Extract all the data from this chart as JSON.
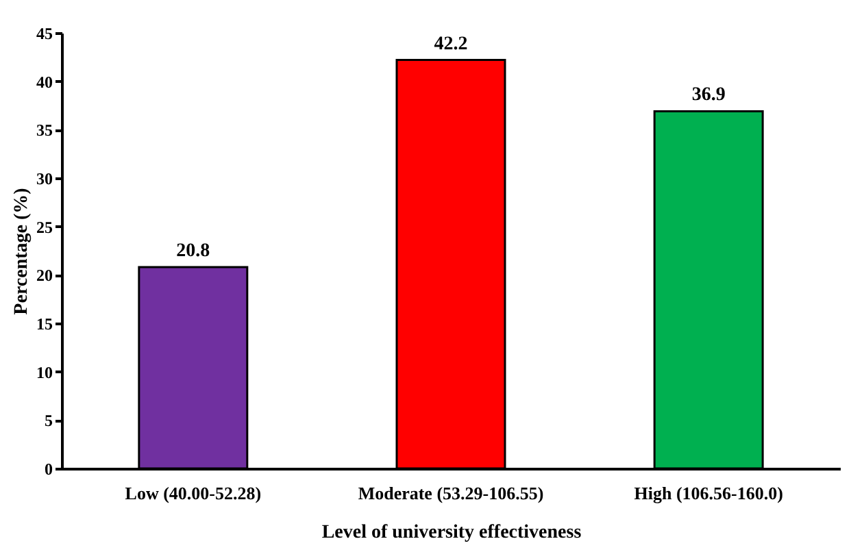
{
  "chart_data": {
    "type": "bar",
    "xlabel": "Level of university effectiveness",
    "ylabel": "Percentage (%)",
    "categories": [
      "Low (40.00-52.28)",
      "Moderate (53.29-106.55)",
      "High (106.56-160.0)"
    ],
    "values": [
      20.8,
      42.2,
      36.9
    ],
    "colors": [
      "#7030a0",
      "#ff0000",
      "#00b050"
    ],
    "ylim": [
      0,
      45
    ],
    "yticks": [
      0,
      5,
      10,
      15,
      20,
      25,
      30,
      35,
      40,
      45
    ],
    "data_labels": true,
    "grid": false,
    "legend": false
  }
}
